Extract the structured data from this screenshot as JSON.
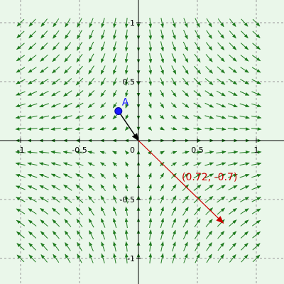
{
  "app": {
    "background": "#eaf7ea",
    "grid_color": "#9a9a9a",
    "axis_color": "#000000",
    "field_color": "#1e7a1e"
  },
  "axes": {
    "x_range": [
      -1.13,
      1.13
    ],
    "y_range": [
      -1.18,
      1.18
    ],
    "x_ticks": [
      {
        "value": -1,
        "label": "-1"
      },
      {
        "value": -0.5,
        "label": "-0.5"
      },
      {
        "value": 0,
        "label": "0"
      },
      {
        "value": 0.5,
        "label": "0.5"
      },
      {
        "value": 1,
        "label": "1"
      }
    ],
    "y_ticks": [
      {
        "value": 1,
        "label": "1"
      },
      {
        "value": 0.5,
        "label": "0.5"
      },
      {
        "value": -0.5,
        "label": "-0.5"
      },
      {
        "value": -1,
        "label": "-1"
      }
    ],
    "grid": true
  },
  "vector_field": {
    "description_function": "F(x,y)=(x,-y) scaled",
    "grid_step": 0.1,
    "x_from": -1.0,
    "x_to": 1.0,
    "y_from": -1.0,
    "y_to": 1.0
  },
  "point_a": {
    "label": "A",
    "x": -0.17,
    "y": 0.25,
    "color": "#1a1aff"
  },
  "point_vector": {
    "from": [
      -0.17,
      0.25
    ],
    "to": [
      0.0,
      0.0
    ],
    "color": "#000000"
  },
  "result_vector": {
    "label": "(0.72, -0.7)",
    "from": [
      0.0,
      0.0
    ],
    "to": [
      0.72,
      -0.7
    ],
    "color": "#cc0000"
  }
}
